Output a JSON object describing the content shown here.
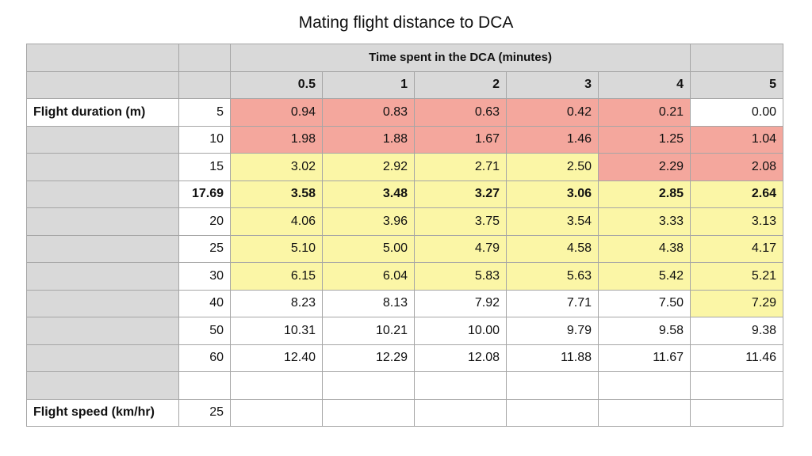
{
  "title": "Mating flight distance to DCA",
  "header": {
    "group_label": "Time spent in the DCA (minutes)",
    "columns": [
      "0.5",
      "1",
      "2",
      "3",
      "4",
      "5"
    ]
  },
  "labels": {
    "flight_duration": "Flight duration (m)",
    "flight_speed": "Flight speed (km/hr)",
    "flight_speed_value": "25"
  },
  "rows": [
    {
      "duration": "5",
      "values": [
        "0.94",
        "0.83",
        "0.63",
        "0.42",
        "0.21",
        "0.00"
      ],
      "colors": [
        "red",
        "red",
        "red",
        "red",
        "red",
        "white"
      ],
      "bold": false
    },
    {
      "duration": "10",
      "values": [
        "1.98",
        "1.88",
        "1.67",
        "1.46",
        "1.25",
        "1.04"
      ],
      "colors": [
        "red",
        "red",
        "red",
        "red",
        "red",
        "red"
      ],
      "bold": false
    },
    {
      "duration": "15",
      "values": [
        "3.02",
        "2.92",
        "2.71",
        "2.50",
        "2.29",
        "2.08"
      ],
      "colors": [
        "yellow",
        "yellow",
        "yellow",
        "yellow",
        "red",
        "red"
      ],
      "bold": false
    },
    {
      "duration": "17.69",
      "values": [
        "3.58",
        "3.48",
        "3.27",
        "3.06",
        "2.85",
        "2.64"
      ],
      "colors": [
        "yellow",
        "yellow",
        "yellow",
        "yellow",
        "yellow",
        "yellow"
      ],
      "bold": true
    },
    {
      "duration": "20",
      "values": [
        "4.06",
        "3.96",
        "3.75",
        "3.54",
        "3.33",
        "3.13"
      ],
      "colors": [
        "yellow",
        "yellow",
        "yellow",
        "yellow",
        "yellow",
        "yellow"
      ],
      "bold": false
    },
    {
      "duration": "25",
      "values": [
        "5.10",
        "5.00",
        "4.79",
        "4.58",
        "4.38",
        "4.17"
      ],
      "colors": [
        "yellow",
        "yellow",
        "yellow",
        "yellow",
        "yellow",
        "yellow"
      ],
      "bold": false
    },
    {
      "duration": "30",
      "values": [
        "6.15",
        "6.04",
        "5.83",
        "5.63",
        "5.42",
        "5.21"
      ],
      "colors": [
        "yellow",
        "yellow",
        "yellow",
        "yellow",
        "yellow",
        "yellow"
      ],
      "bold": false
    },
    {
      "duration": "40",
      "values": [
        "8.23",
        "8.13",
        "7.92",
        "7.71",
        "7.50",
        "7.29"
      ],
      "colors": [
        "white",
        "white",
        "white",
        "white",
        "white",
        "yellow"
      ],
      "bold": false
    },
    {
      "duration": "50",
      "values": [
        "10.31",
        "10.21",
        "10.00",
        "9.79",
        "9.58",
        "9.38"
      ],
      "colors": [
        "white",
        "white",
        "white",
        "white",
        "white",
        "white"
      ],
      "bold": false
    },
    {
      "duration": "60",
      "values": [
        "12.40",
        "12.29",
        "12.08",
        "11.88",
        "11.67",
        "11.46"
      ],
      "colors": [
        "white",
        "white",
        "white",
        "white",
        "white",
        "white"
      ],
      "bold": false
    }
  ],
  "colors": {
    "red": "#f4a79d",
    "yellow": "#fbf6a6",
    "header_gray": "#d9d9d9",
    "border": "#a6a6a6"
  }
}
